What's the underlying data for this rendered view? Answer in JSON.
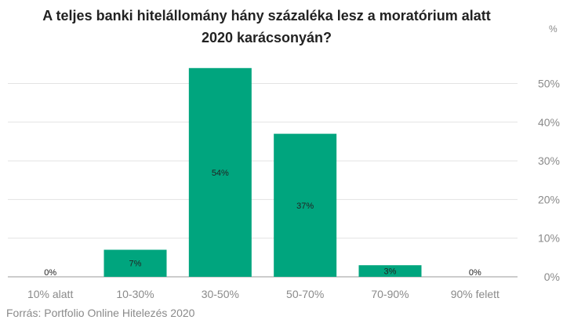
{
  "title_line1": "A teljes banki hitelállomány hány százaléka lesz a moratórium alatt",
  "title_line2": "2020 karácsonyán?",
  "unit": "%",
  "source": "Forrás: Portfolio Online Hitelezés 2020",
  "colors": {
    "bar": "#00a57e",
    "grid": "#e3e3e3",
    "axis_text": "#8a8a8a",
    "label_text": "#222222"
  },
  "chart_data": {
    "type": "bar",
    "categories": [
      "10% alatt",
      "10-30%",
      "30-50%",
      "50-70%",
      "70-90%",
      "90% felett"
    ],
    "values": [
      0,
      7,
      54,
      37,
      3,
      0
    ],
    "value_labels": [
      "0%",
      "7%",
      "54%",
      "37%",
      "3%",
      "0%"
    ],
    "y_ticks": [
      0,
      10,
      20,
      30,
      40,
      50
    ],
    "y_tick_labels": [
      "0%",
      "10%",
      "20%",
      "30%",
      "40%",
      "50%"
    ],
    "ylim": [
      0,
      57
    ],
    "grid": true,
    "legend": "none"
  }
}
